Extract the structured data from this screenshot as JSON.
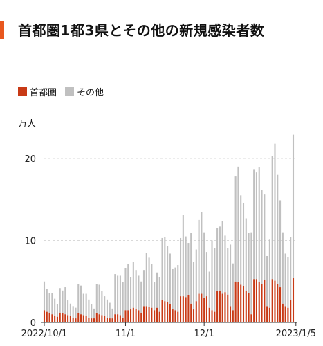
{
  "title": "首都圏1都3県とその他の新規感染者数",
  "colors": {
    "accent": "#e8571f",
    "capital": "#c83a16",
    "other": "#c0c0c0",
    "grid": "#d9d9d9"
  },
  "legend": [
    {
      "label": "首都圏",
      "color": "#c83a16"
    },
    {
      "label": "その他",
      "color": "#c0c0c0"
    }
  ],
  "unit_label": "万人",
  "chart_data": {
    "type": "bar",
    "stacked": true,
    "title": "首都圏1都3県とその他の新規感染者数",
    "ylabel": "万人",
    "ylim": [
      0,
      23
    ],
    "yticks": [
      0,
      10,
      20
    ],
    "grid": true,
    "legend_position": "top-left",
    "xticks": [
      {
        "label": "2022/10/1",
        "index": 0
      },
      {
        "label": "11/1",
        "index": 31
      },
      {
        "label": "12/1",
        "index": 61
      },
      {
        "label": "2023/1/5",
        "index": 96
      }
    ],
    "series": [
      {
        "name": "首都圏",
        "values": [
          1.5,
          1.3,
          1.2,
          1.0,
          0.8,
          0.7,
          1.2,
          1.1,
          1.0,
          0.9,
          0.8,
          0.6,
          0.5,
          1.1,
          1.0,
          0.9,
          0.8,
          0.6,
          0.5,
          0.5,
          1.1,
          1.0,
          0.9,
          0.8,
          0.6,
          0.5,
          0.5,
          1.0,
          1.0,
          0.9,
          0.6,
          1.5,
          1.5,
          1.6,
          1.8,
          1.7,
          1.5,
          1.2,
          2.0,
          2.0,
          1.9,
          1.8,
          1.5,
          1.8,
          1.3,
          2.8,
          2.6,
          2.5,
          2.2,
          1.6,
          1.5,
          1.3,
          3.2,
          3.2,
          3.1,
          3.3,
          2.3,
          1.6,
          2.6,
          3.5,
          3.5,
          3.0,
          3.2,
          1.8,
          1.5,
          1.3,
          3.8,
          3.9,
          3.5,
          3.7,
          3.4,
          2.0,
          1.5,
          5.0,
          4.9,
          4.6,
          4.4,
          3.8,
          3.6,
          1.0,
          5.3,
          5.3,
          4.9,
          4.7,
          5.2,
          2.0,
          1.8,
          5.3,
          5.1,
          4.7,
          4.3,
          2.3,
          2.0,
          1.8,
          2.7,
          5.4
        ]
      },
      {
        "name": "その他",
        "values": [
          3.5,
          2.8,
          2.4,
          2.6,
          2.1,
          1.5,
          3.0,
          2.8,
          3.3,
          1.8,
          1.5,
          1.4,
          1.3,
          3.6,
          3.5,
          2.6,
          2.7,
          2.2,
          1.7,
          1.2,
          3.6,
          3.6,
          2.9,
          2.4,
          2.2,
          1.9,
          1.2,
          4.9,
          4.7,
          4.8,
          4.3,
          5.1,
          5.6,
          3.9,
          5.6,
          4.7,
          4.2,
          3.8,
          4.4,
          6.5,
          6.0,
          5.3,
          3.4,
          4.3,
          4.2,
          7.5,
          7.8,
          6.8,
          6.2,
          4.9,
          5.2,
          5.7,
          7.1,
          9.9,
          7.4,
          6.4,
          8.6,
          5.8,
          6.3,
          9.0,
          10.0,
          8.0,
          5.4,
          4.4,
          8.5,
          7.8,
          7.7,
          7.8,
          8.9,
          6.9,
          5.7,
          7.5,
          5.7,
          12.8,
          14.1,
          10.9,
          10.2,
          8.9,
          7.3,
          10.0,
          13.4,
          13.0,
          14.0,
          11.5,
          10.4,
          6.1,
          8.3,
          15.0,
          16.7,
          13.3,
          10.6,
          8.7,
          6.4,
          6.2,
          7.7,
          17.5
        ]
      }
    ]
  }
}
